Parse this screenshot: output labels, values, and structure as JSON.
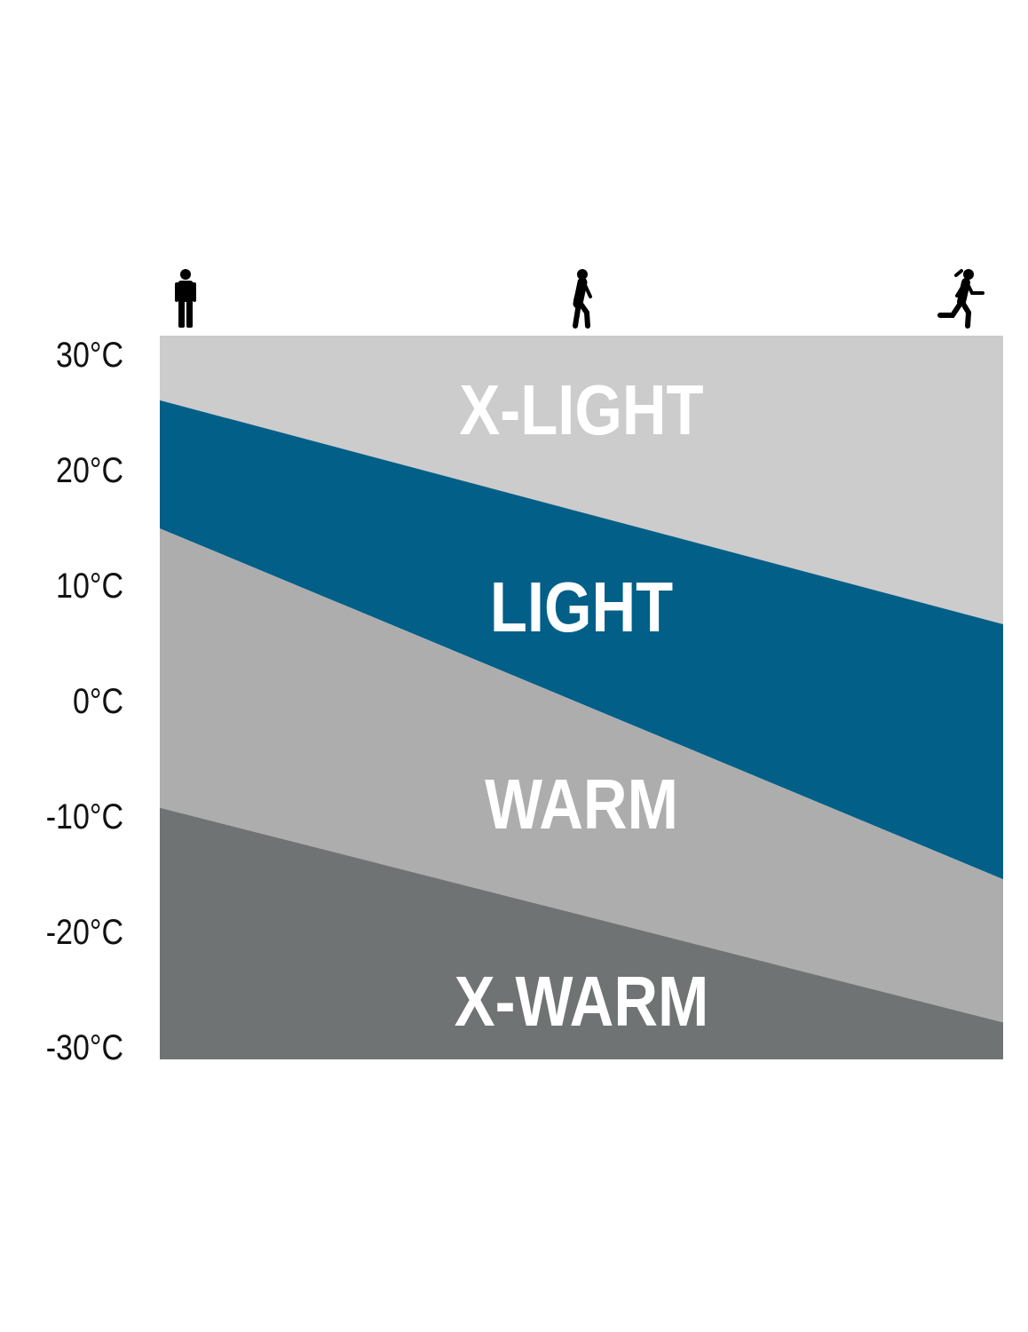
{
  "chart_data": {
    "type": "area",
    "title": "",
    "xlabel": "",
    "ylabel": "",
    "x_categories": [
      "standing",
      "walking",
      "running"
    ],
    "x_icons": [
      "standing-person-icon",
      "walking-person-icon",
      "running-person-icon"
    ],
    "ylim": [
      -31.1,
      31.6
    ],
    "yticks": [
      30,
      20,
      10,
      0,
      -10,
      -20,
      -30
    ],
    "ytick_labels": [
      "30°C",
      "20°C",
      "10°C",
      "0°C",
      "-10°C",
      "-20°C",
      "-30°C"
    ],
    "grid": false,
    "bands": [
      {
        "name": "X-LIGHT",
        "color": "#cccccc",
        "upper": [
          31.6,
          31.6
        ],
        "lower": [
          26.0,
          6.6
        ]
      },
      {
        "name": "LIGHT",
        "color": "#025f88",
        "upper": [
          26.0,
          6.6
        ],
        "lower": [
          14.9,
          -15.5
        ]
      },
      {
        "name": "WARM",
        "color": "#adadad",
        "upper": [
          14.9,
          -15.5
        ],
        "lower": [
          -9.3,
          -27.9
        ]
      },
      {
        "name": "X-WARM",
        "color": "#707373",
        "upper": [
          -9.3,
          -27.9
        ],
        "lower": [
          -31.1,
          -31.1
        ]
      }
    ],
    "band_boundaries_note_x": [
      "standing",
      "running"
    ]
  }
}
